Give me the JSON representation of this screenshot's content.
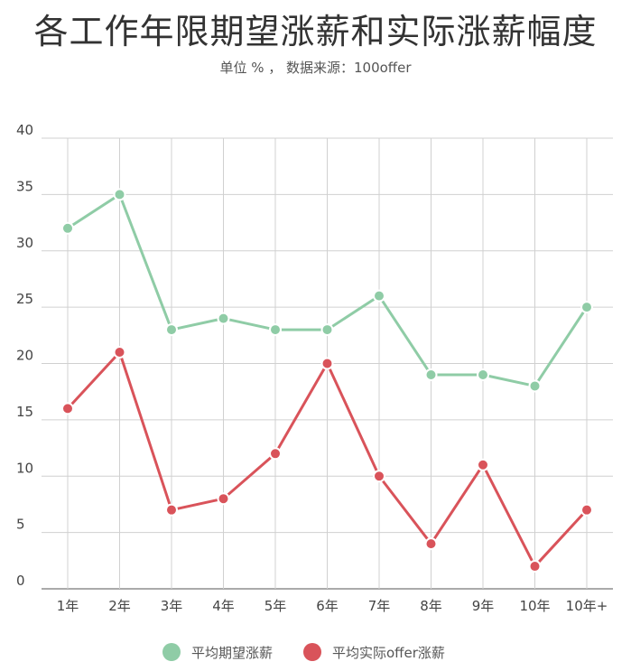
{
  "chart_data": {
    "type": "line",
    "title": "各工作年限期望涨薪和实际涨薪幅度",
    "subtitle": "单位 % ， 数据来源：100offer",
    "categories": [
      "1年",
      "2年",
      "3年",
      "4年",
      "5年",
      "6年",
      "7年",
      "8年",
      "9年",
      "10年",
      "10年+"
    ],
    "ylim": [
      0,
      40
    ],
    "yticks": [
      0,
      5,
      10,
      15,
      20,
      25,
      30,
      35,
      40
    ],
    "grid": true,
    "legend_position": "bottom-center",
    "series": [
      {
        "name": "平均期望涨薪",
        "color": "#8fcca6",
        "values": [
          32,
          35,
          23,
          24,
          23,
          23,
          26,
          19,
          19,
          18,
          25
        ]
      },
      {
        "name": "平均实际offer涨薪",
        "color": "#d9535a",
        "values": [
          16,
          21,
          7,
          8,
          12,
          20,
          10,
          4,
          11,
          2,
          7
        ]
      }
    ]
  }
}
